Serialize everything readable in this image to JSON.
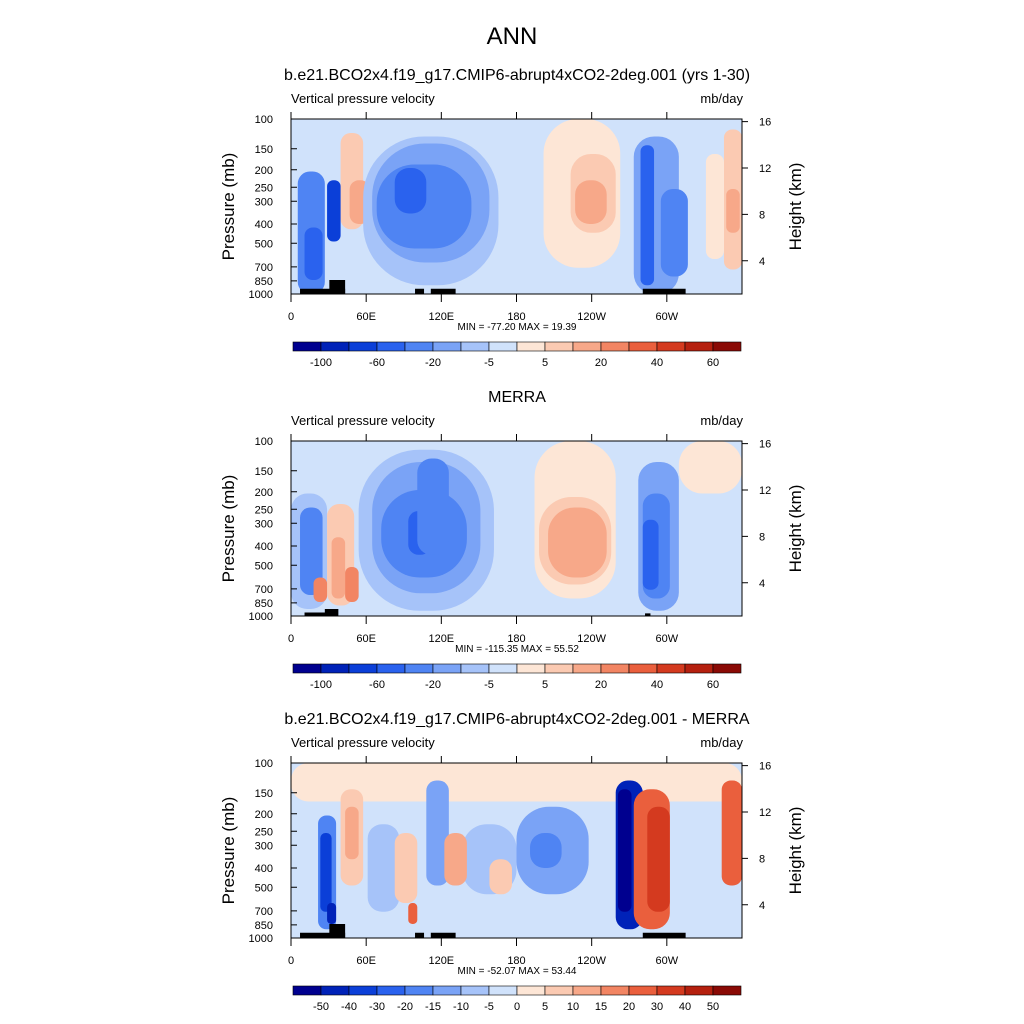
{
  "figure": {
    "main_title": "ANN"
  },
  "chart_data": [
    {
      "type": "heatmap",
      "title": "b.e21.BCO2x4.f19_g17.CMIP6-abrupt4xCO2-2deg.001 (yrs 1-30)",
      "left_label": "Vertical pressure velocity",
      "units": "mb/day",
      "ylabel": "Pressure (mb)",
      "ylabel_right": "Height (km)",
      "pressure_ticks": [
        "100",
        "150",
        "200",
        "250",
        "300",
        "400",
        "500",
        "700",
        "850",
        "1000"
      ],
      "height_ticks": [
        "16",
        "12",
        "8",
        "4"
      ],
      "lon_ticks": [
        "0",
        "60E",
        "120E",
        "180",
        "120W",
        "60W"
      ],
      "stats": "MIN = -77.20  MAX =  19.39",
      "min": -77.2,
      "max": 19.39,
      "colorbar_labels": [
        "-100",
        "-60",
        "-20",
        "-5",
        "5",
        "20",
        "40",
        "60"
      ],
      "colorbar_colors": [
        "#00008f",
        "#0022b8",
        "#0b3fd8",
        "#2a62ee",
        "#4f84f3",
        "#7aa3f6",
        "#a6c3f9",
        "#d0e2fb",
        "#fde6d6",
        "#fbcab2",
        "#f7a889",
        "#f28563",
        "#ea5f3d",
        "#d43a1f",
        "#b5200f",
        "#8a0a05"
      ]
    },
    {
      "type": "heatmap",
      "title": "MERRA",
      "left_label": "Vertical pressure velocity",
      "units": "mb/day",
      "ylabel": "Pressure (mb)",
      "ylabel_right": "Height (km)",
      "pressure_ticks": [
        "100",
        "150",
        "200",
        "250",
        "300",
        "400",
        "500",
        "700",
        "850",
        "1000"
      ],
      "height_ticks": [
        "16",
        "12",
        "8",
        "4"
      ],
      "lon_ticks": [
        "0",
        "60E",
        "120E",
        "180",
        "120W",
        "60W"
      ],
      "stats": "MIN = -115.35  MAX =  55.52",
      "min": -115.35,
      "max": 55.52,
      "colorbar_labels": [
        "-100",
        "-60",
        "-20",
        "-5",
        "5",
        "20",
        "40",
        "60"
      ],
      "colorbar_colors": [
        "#00008f",
        "#0022b8",
        "#0b3fd8",
        "#2a62ee",
        "#4f84f3",
        "#7aa3f6",
        "#a6c3f9",
        "#d0e2fb",
        "#fde6d6",
        "#fbcab2",
        "#f7a889",
        "#f28563",
        "#ea5f3d",
        "#d43a1f",
        "#b5200f",
        "#8a0a05"
      ]
    },
    {
      "type": "heatmap",
      "title": "b.e21.BCO2x4.f19_g17.CMIP6-abrupt4xCO2-2deg.001 - MERRA",
      "left_label": "Vertical pressure velocity",
      "units": "mb/day",
      "ylabel": "Pressure (mb)",
      "ylabel_right": "Height (km)",
      "pressure_ticks": [
        "100",
        "150",
        "200",
        "250",
        "300",
        "400",
        "500",
        "700",
        "850",
        "1000"
      ],
      "height_ticks": [
        "16",
        "12",
        "8",
        "4"
      ],
      "lon_ticks": [
        "0",
        "60E",
        "120E",
        "180",
        "120W",
        "60W"
      ],
      "stats": "MIN = -52.07  MAX =  53.44",
      "min": -52.07,
      "max": 53.44,
      "colorbar_labels": [
        "-50",
        "-40",
        "-30",
        "-20",
        "-15",
        "-10",
        "-5",
        "0",
        "5",
        "10",
        "15",
        "20",
        "30",
        "40",
        "50"
      ],
      "colorbar_colors": [
        "#00008f",
        "#0022b8",
        "#0b3fd8",
        "#2a62ee",
        "#4f84f3",
        "#7aa3f6",
        "#a6c3f9",
        "#d0e2fb",
        "#fde6d6",
        "#fbcab2",
        "#f7a889",
        "#f28563",
        "#ea5f3d",
        "#d43a1f",
        "#b5200f",
        "#8a0a05"
      ]
    }
  ]
}
